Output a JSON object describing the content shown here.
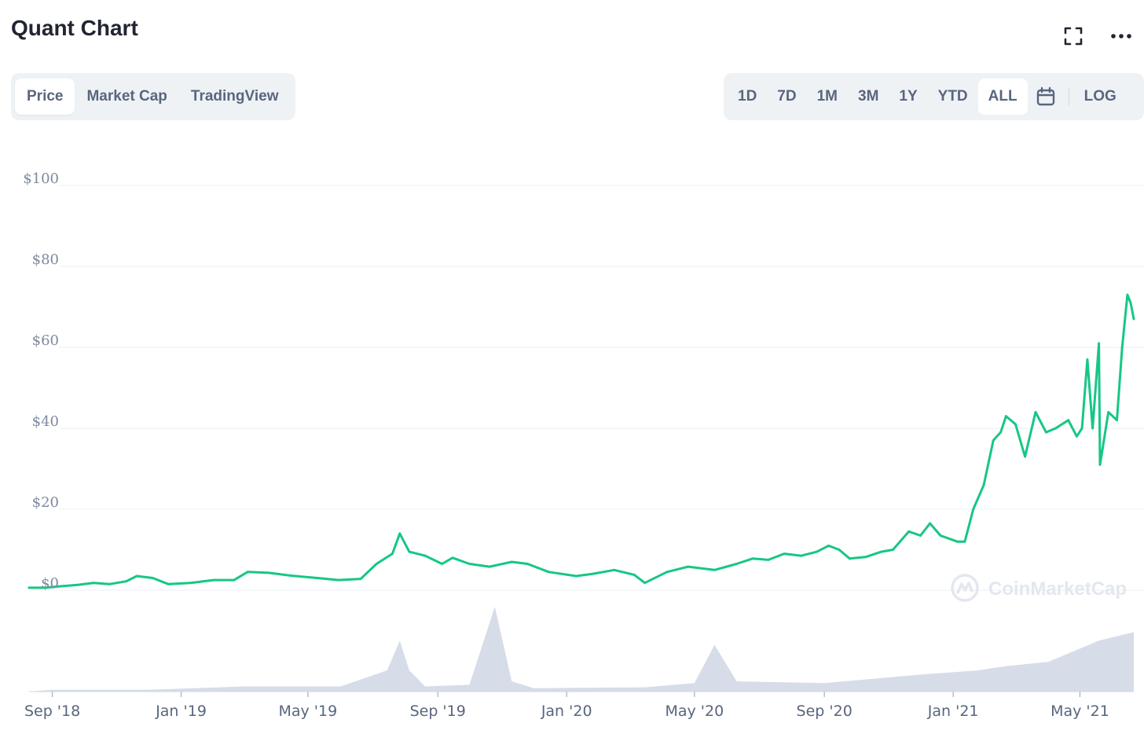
{
  "header": {
    "title": "Quant Chart"
  },
  "icons": {
    "expand": "expand-icon",
    "more": "more-horizontal-icon",
    "calendar": "calendar-icon"
  },
  "tabs": [
    {
      "label": "Price",
      "active": true
    },
    {
      "label": "Market Cap",
      "active": false
    },
    {
      "label": "TradingView",
      "active": false
    }
  ],
  "ranges": [
    {
      "label": "1D",
      "active": false
    },
    {
      "label": "7D",
      "active": false
    },
    {
      "label": "1M",
      "active": false
    },
    {
      "label": "3M",
      "active": false
    },
    {
      "label": "1Y",
      "active": false
    },
    {
      "label": "YTD",
      "active": false
    },
    {
      "label": "ALL",
      "active": true
    }
  ],
  "log_label": "LOG",
  "watermark": "CoinMarketCap",
  "colors": {
    "line": "#16c784",
    "volume": "#cfd6e4",
    "grid": "#eff2f5",
    "accent": "#58667e"
  },
  "chart_data": {
    "type": "line",
    "title": "",
    "ylim": [
      0,
      100
    ],
    "yticks": [
      0,
      20,
      40,
      60,
      80,
      100
    ],
    "ytick_labels": [
      "$0",
      "$20",
      "$40",
      "$60",
      "$80",
      "$100"
    ],
    "xticks": [
      "2018-09-01",
      "2019-01-01",
      "2019-05-01",
      "2019-09-01",
      "2020-01-01",
      "2020-05-01",
      "2020-09-01",
      "2021-01-01",
      "2021-05-01"
    ],
    "xtick_labels": [
      "Sep '18",
      "Jan '19",
      "May '19",
      "Sep '19",
      "Jan '20",
      "May '20",
      "Sep '20",
      "Jan '21",
      "May '21"
    ],
    "xlim": [
      "2018-08-10",
      "2021-06-21"
    ],
    "grid": true,
    "series": [
      {
        "name": "",
        "points": [
          [
            "2018-08-10",
            0.6
          ],
          [
            "2018-08-25",
            0.6
          ],
          [
            "2018-09-10",
            1.0
          ],
          [
            "2018-09-25",
            1.3
          ],
          [
            "2018-10-10",
            1.8
          ],
          [
            "2018-10-25",
            1.5
          ],
          [
            "2018-11-10",
            2.2
          ],
          [
            "2018-11-20",
            3.5
          ],
          [
            "2018-12-05",
            3.0
          ],
          [
            "2018-12-20",
            1.5
          ],
          [
            "2019-01-10",
            1.8
          ],
          [
            "2019-02-01",
            2.5
          ],
          [
            "2019-02-20",
            2.5
          ],
          [
            "2019-03-05",
            4.5
          ],
          [
            "2019-03-25",
            4.3
          ],
          [
            "2019-04-15",
            3.6
          ],
          [
            "2019-05-10",
            3.0
          ],
          [
            "2019-05-30",
            2.5
          ],
          [
            "2019-06-20",
            2.8
          ],
          [
            "2019-07-05",
            6.5
          ],
          [
            "2019-07-20",
            9.0
          ],
          [
            "2019-07-27",
            14.0
          ],
          [
            "2019-08-05",
            9.5
          ],
          [
            "2019-08-20",
            8.5
          ],
          [
            "2019-09-05",
            6.5
          ],
          [
            "2019-09-15",
            8.0
          ],
          [
            "2019-10-01",
            6.5
          ],
          [
            "2019-10-20",
            5.8
          ],
          [
            "2019-11-10",
            7.0
          ],
          [
            "2019-11-25",
            6.5
          ],
          [
            "2019-12-15",
            4.5
          ],
          [
            "2020-01-10",
            3.5
          ],
          [
            "2020-01-25",
            4.0
          ],
          [
            "2020-02-15",
            5.0
          ],
          [
            "2020-03-05",
            3.8
          ],
          [
            "2020-03-15",
            1.8
          ],
          [
            "2020-04-05",
            4.5
          ],
          [
            "2020-04-25",
            5.8
          ],
          [
            "2020-05-20",
            5.0
          ],
          [
            "2020-06-10",
            6.5
          ],
          [
            "2020-06-25",
            7.8
          ],
          [
            "2020-07-10",
            7.5
          ],
          [
            "2020-07-25",
            9.0
          ],
          [
            "2020-08-10",
            8.5
          ],
          [
            "2020-08-25",
            9.5
          ],
          [
            "2020-09-05",
            11.0
          ],
          [
            "2020-09-15",
            10.0
          ],
          [
            "2020-09-25",
            7.8
          ],
          [
            "2020-10-10",
            8.2
          ],
          [
            "2020-10-25",
            9.5
          ],
          [
            "2020-11-05",
            10.0
          ],
          [
            "2020-11-20",
            14.5
          ],
          [
            "2020-12-01",
            13.5
          ],
          [
            "2020-12-10",
            16.5
          ],
          [
            "2020-12-20",
            13.5
          ],
          [
            "2021-01-05",
            12.0
          ],
          [
            "2021-01-12",
            12.0
          ],
          [
            "2021-01-20",
            20.0
          ],
          [
            "2021-01-30",
            26.0
          ],
          [
            "2021-02-08",
            37.0
          ],
          [
            "2021-02-15",
            39.0
          ],
          [
            "2021-02-20",
            43.0
          ],
          [
            "2021-03-01",
            41.0
          ],
          [
            "2021-03-10",
            33.0
          ],
          [
            "2021-03-20",
            44.0
          ],
          [
            "2021-03-30",
            39.0
          ],
          [
            "2021-04-08",
            40.0
          ],
          [
            "2021-04-20",
            42.0
          ],
          [
            "2021-04-28",
            38.0
          ],
          [
            "2021-05-03",
            40.0
          ],
          [
            "2021-05-08",
            57.0
          ],
          [
            "2021-05-13",
            40.0
          ],
          [
            "2021-05-19",
            61.0
          ],
          [
            "2021-05-20",
            31.0
          ],
          [
            "2021-05-28",
            44.0
          ],
          [
            "2021-06-05",
            42.0
          ],
          [
            "2021-06-10",
            60.0
          ],
          [
            "2021-06-15",
            73.0
          ],
          [
            "2021-06-18",
            71.0
          ],
          [
            "2021-06-21",
            67.0
          ]
        ]
      }
    ],
    "volume_relative": [
      [
        "2018-08-10",
        0.0
      ],
      [
        "2018-09-01",
        0.02
      ],
      [
        "2018-12-01",
        0.02
      ],
      [
        "2019-03-01",
        0.06
      ],
      [
        "2019-06-01",
        0.06
      ],
      [
        "2019-07-15",
        0.25
      ],
      [
        "2019-07-27",
        0.6
      ],
      [
        "2019-08-05",
        0.25
      ],
      [
        "2019-08-20",
        0.06
      ],
      [
        "2019-10-01",
        0.08
      ],
      [
        "2019-10-25",
        1.0
      ],
      [
        "2019-11-10",
        0.12
      ],
      [
        "2019-12-01",
        0.04
      ],
      [
        "2020-03-15",
        0.05
      ],
      [
        "2020-05-01",
        0.1
      ],
      [
        "2020-05-20",
        0.55
      ],
      [
        "2020-06-10",
        0.12
      ],
      [
        "2020-09-01",
        0.1
      ],
      [
        "2020-12-01",
        0.2
      ],
      [
        "2021-01-25",
        0.25
      ],
      [
        "2021-02-20",
        0.3
      ],
      [
        "2021-04-01",
        0.35
      ],
      [
        "2021-05-19",
        0.6
      ],
      [
        "2021-06-21",
        0.7
      ]
    ]
  }
}
